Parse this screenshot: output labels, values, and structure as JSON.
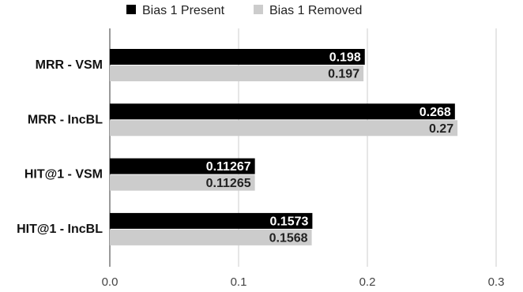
{
  "chart_data": {
    "type": "bar",
    "orientation": "horizontal",
    "categories": [
      "MRR - VSM",
      "MRR - IncBL",
      "HIT@1 - VSM",
      "HIT@1 - IncBL"
    ],
    "series": [
      {
        "name": "Bias 1 Present",
        "color": "#000000",
        "label_color": "#ffffff",
        "values": [
          0.198,
          0.268,
          0.11267,
          0.1573
        ],
        "labels": [
          "0.198",
          "0.268",
          "0.11267",
          "0.1573"
        ]
      },
      {
        "name": "Bias 1 Removed",
        "color": "#cccccc",
        "label_color": "#222222",
        "values": [
          0.197,
          0.27,
          0.11265,
          0.1568
        ],
        "labels": [
          "0.197",
          "0.27",
          "0.11265",
          "0.1568"
        ]
      }
    ],
    "xlim": [
      0,
      0.3
    ],
    "x_ticks": [
      0,
      0.1,
      0.2,
      0.3
    ],
    "x_tick_labels": [
      "0.0",
      "0.1",
      "0.2",
      "0.3"
    ],
    "grid": true,
    "legend": "top-center",
    "title": "",
    "xlabel": "",
    "ylabel": ""
  }
}
